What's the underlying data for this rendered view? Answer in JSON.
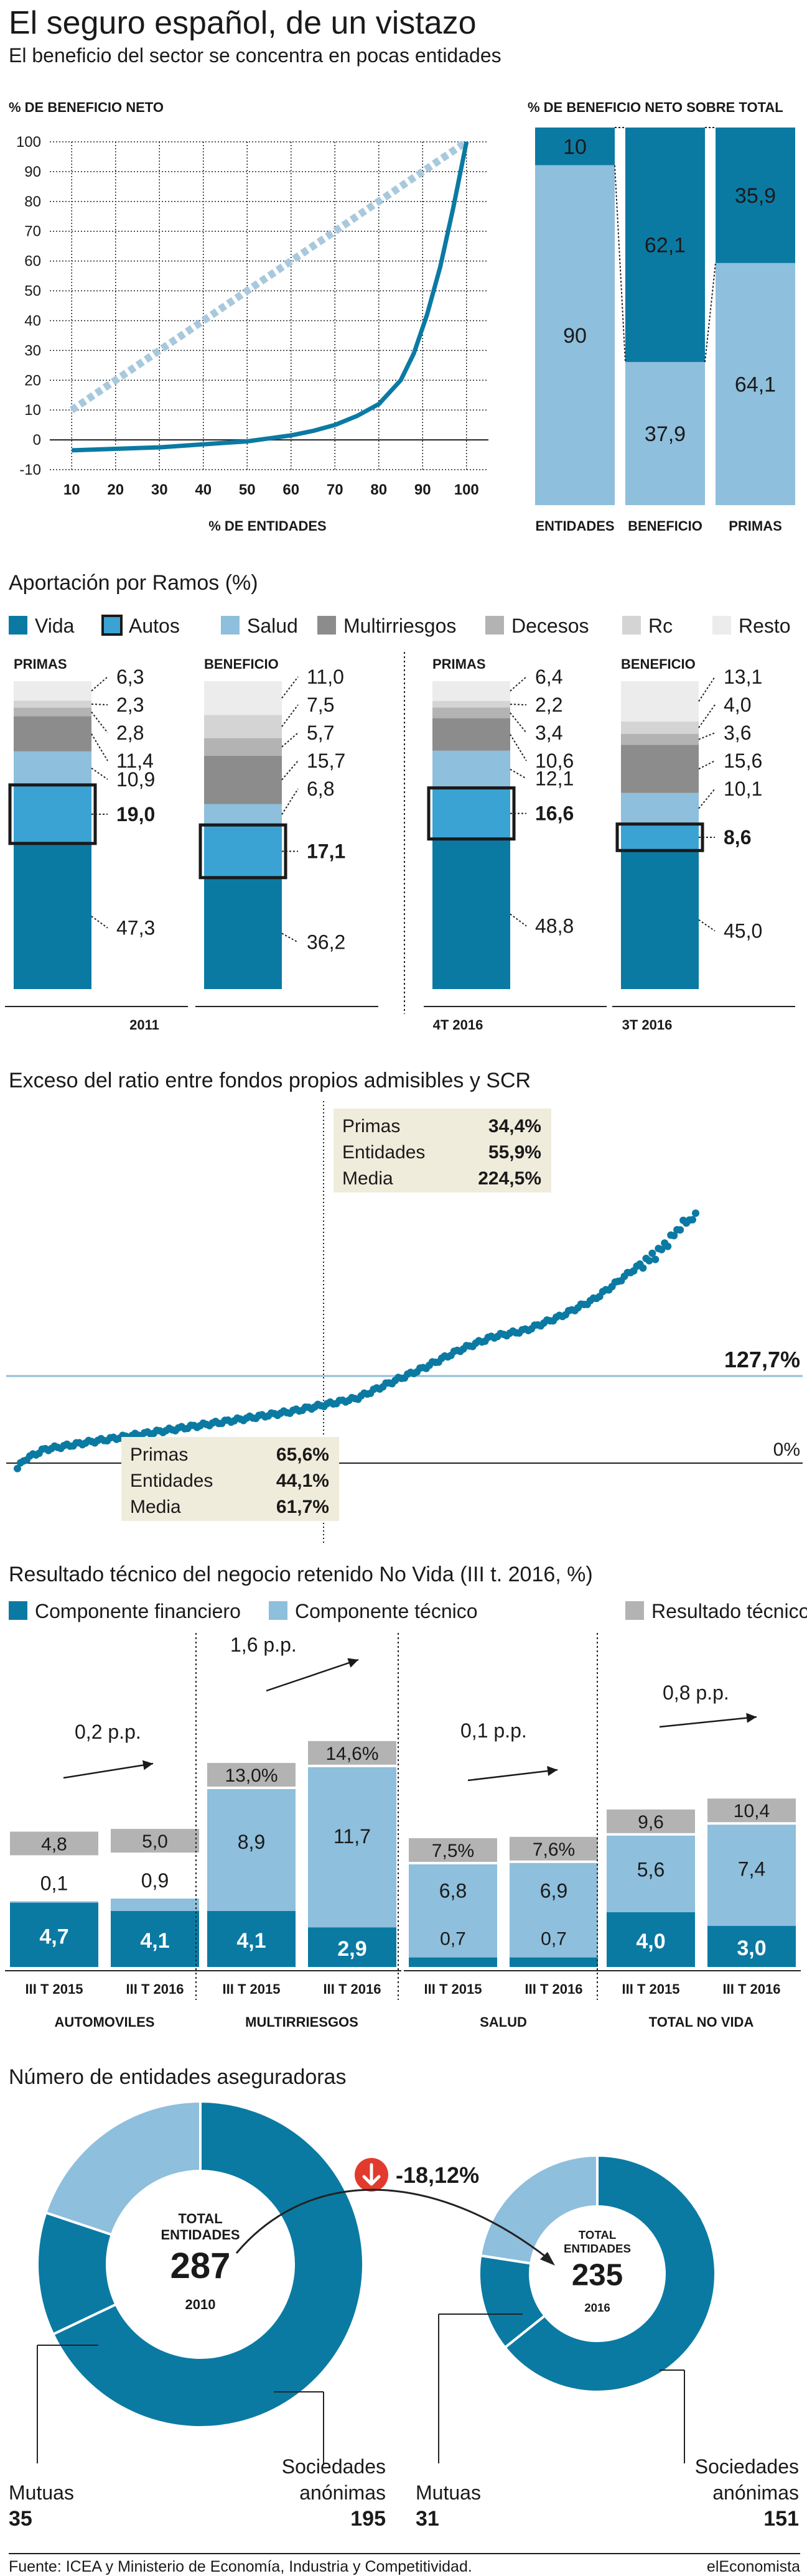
{
  "header": {
    "title": "El seguro español, de un vistazo",
    "subtitle": "El beneficio del sector se concentra en pocas entidades"
  },
  "colors": {
    "vida": "#0b7aa3",
    "autos": "#3aa3d4",
    "salud": "#8ebfdc",
    "multirriesgos": "#8c8c8c",
    "decesos": "#b3b3b3",
    "rc": "#d4d4d4",
    "resto": "#ececec",
    "line": "#0b7aa3",
    "dotted": "#a8c9dd",
    "box": "#f0ecdc",
    "red": "#e23b2e",
    "text": "#1a1a1a"
  },
  "chart_data": [
    {
      "id": "concentration",
      "type": "line",
      "ylabel": "% DE BENEFICIO NETO",
      "xlabel": "% DE ENTIDADES",
      "xlim": [
        5,
        105
      ],
      "ylim": [
        -10,
        100
      ],
      "xticks": [
        10,
        20,
        30,
        40,
        50,
        60,
        70,
        80,
        90,
        100
      ],
      "yticks": [
        -10,
        0,
        10,
        20,
        30,
        40,
        50,
        60,
        70,
        80,
        90,
        100
      ],
      "grid": true,
      "series": [
        {
          "style": "curve",
          "x": [
            10,
            20,
            30,
            40,
            50,
            55,
            60,
            65,
            70,
            75,
            80,
            85,
            88,
            91,
            94,
            97,
            100
          ],
          "y": [
            -3.5,
            -3,
            -2.5,
            -1.5,
            -0.5,
            0.5,
            1.5,
            3,
            5,
            8,
            12,
            20,
            29,
            42,
            58,
            78,
            100
          ]
        },
        {
          "style": "dotted",
          "x": [
            10,
            100
          ],
          "y": [
            10,
            100
          ]
        }
      ]
    },
    {
      "id": "concentration-bars",
      "type": "bar",
      "title": "% DE BENEFICIO NETO SOBRE TOTAL",
      "categories": [
        "ENTIDADES",
        "BENEFICIO",
        "PRIMAS"
      ],
      "series": [
        {
          "values": [
            90,
            37.9,
            64.1
          ],
          "labels": [
            "90",
            "37,9",
            "64,1"
          ]
        },
        {
          "values": [
            10,
            62.1,
            35.9
          ],
          "labels": [
            "10",
            "62,1",
            "35,9"
          ]
        }
      ]
    },
    {
      "id": "ramos",
      "type": "bar",
      "title": "Aportación por Ramos (%)",
      "legend": [
        "Vida",
        "Autos",
        "Salud",
        "Multirriesgos",
        "Decesos",
        "Rc",
        "Resto"
      ],
      "groups": [
        {
          "label": "2011",
          "bars": [
            {
              "label": "PRIMAS",
              "values": [
                47.3,
                19.0,
                10.9,
                11.4,
                2.8,
                2.3,
                6.3
              ],
              "labels": [
                "47,3",
                "19,0",
                "10,9",
                "11,4",
                "2,8",
                "2,3",
                "6,3"
              ]
            },
            {
              "label": "BENEFICIO",
              "values": [
                36.2,
                17.1,
                6.8,
                15.7,
                5.7,
                7.5,
                11.0
              ],
              "labels": [
                "36,2",
                "17,1",
                "6,8",
                "15,7",
                "5,7",
                "7,5",
                "11,0"
              ]
            }
          ]
        },
        {
          "label": "4T 2016",
          "bars": [
            {
              "label": "PRIMAS",
              "values": [
                48.8,
                16.6,
                12.1,
                10.6,
                3.4,
                2.2,
                6.4
              ],
              "labels": [
                "48,8",
                "16,6",
                "12,1",
                "10,6",
                "3,4",
                "2,2",
                "6,4"
              ]
            }
          ]
        },
        {
          "label": "3T 2016",
          "bars": [
            {
              "label": "BENEFICIO",
              "values": [
                45.0,
                8.6,
                10.1,
                15.6,
                3.6,
                4.0,
                13.1
              ],
              "labels": [
                "45,0",
                "8,6",
                "10,1",
                "15,6",
                "3,6",
                "4,0",
                "13,1"
              ]
            }
          ]
        }
      ]
    },
    {
      "id": "scr",
      "type": "scatter",
      "title": "Exceso del ratio entre fondos propios admisibles y SCR",
      "ylim": [
        -15,
        400
      ],
      "reference_lines": [
        {
          "value": 127.7,
          "label": "127,7%"
        },
        {
          "value": 0,
          "label": "0%"
        }
      ],
      "top_box": [
        {
          "label": "Primas",
          "value": "34,4%"
        },
        {
          "label": "Entidades",
          "value": "55,9%"
        },
        {
          "label": "Media",
          "value": "224,5%"
        }
      ],
      "bottom_box": [
        {
          "label": "Primas",
          "value": "65,6%"
        },
        {
          "label": "Entidades",
          "value": "44,1%"
        },
        {
          "label": "Media",
          "value": "61,7%"
        }
      ],
      "curve_points": [
        [
          0,
          -8
        ],
        [
          1,
          5
        ],
        [
          4,
          20
        ],
        [
          10,
          30
        ],
        [
          20,
          45
        ],
        [
          30,
          60
        ],
        [
          40,
          75
        ],
        [
          50,
          95
        ],
        [
          55,
          118
        ],
        [
          60,
          140
        ],
        [
          65,
          165
        ],
        [
          70,
          185
        ],
        [
          75,
          195
        ],
        [
          80,
          215
        ],
        [
          85,
          240
        ],
        [
          88,
          262
        ],
        [
          91,
          285
        ],
        [
          94,
          305
        ],
        [
          96,
          325
        ],
        [
          98,
          350
        ],
        [
          100,
          362
        ]
      ],
      "n_points": 220
    },
    {
      "id": "no-vida",
      "type": "bar",
      "title": "Resultado técnico del negocio retenido No Vida (III t. 2016, %)",
      "legend": [
        "Componente financiero",
        "Componente técnico",
        "Resultado técnico"
      ],
      "groups": [
        {
          "label": "AUTOMOVILES",
          "change": "0,2 p.p.",
          "bars": [
            {
              "period": "III T 2015",
              "financiero": 4.7,
              "tecnico": 0.1,
              "resultado": "4,8",
              "fin_label": "4,7",
              "tec_label": "0,1"
            },
            {
              "period": "III T 2016",
              "financiero": 4.1,
              "tecnico": 0.9,
              "resultado": "5,0",
              "fin_label": "4,1",
              "tec_label": "0,9"
            }
          ]
        },
        {
          "label": "MULTIRRIESGOS",
          "change": "1,6 p.p.",
          "bars": [
            {
              "period": "III T 2015",
              "financiero": 4.1,
              "tecnico": 8.9,
              "resultado": "13,0%",
              "fin_label": "4,1",
              "tec_label": "8,9"
            },
            {
              "period": "III T 2016",
              "financiero": 2.9,
              "tecnico": 11.7,
              "resultado": "14,6%",
              "fin_label": "2,9",
              "tec_label": "11,7"
            }
          ]
        },
        {
          "label": "SALUD",
          "change": "0,1 p.p.",
          "bars": [
            {
              "period": "III T 2015",
              "financiero": 0.7,
              "tecnico": 6.8,
              "resultado": "7,5%",
              "fin_label": "0,7",
              "tec_label": "6,8"
            },
            {
              "period": "III T 2016",
              "financiero": 0.7,
              "tecnico": 6.9,
              "resultado": "7,6%",
              "fin_label": "0,7",
              "tec_label": "6,9"
            }
          ]
        },
        {
          "label": "TOTAL NO VIDA",
          "change": "0,8 p.p.",
          "bars": [
            {
              "period": "III T 2015",
              "financiero": 4.0,
              "tecnico": 5.6,
              "resultado": "9,6",
              "fin_label": "4,0",
              "tec_label": "5,6"
            },
            {
              "period": "III T 2016",
              "financiero": 3.0,
              "tecnico": 7.4,
              "resultado": "10,4",
              "fin_label": "3,0",
              "tec_label": "7,4"
            }
          ]
        }
      ]
    },
    {
      "id": "entidades",
      "type": "pie",
      "title": "Número de entidades aseguradoras",
      "change": "-18,12%",
      "center_label": "TOTAL ENTIDADES",
      "donuts": [
        {
          "year": "2010",
          "total": "287",
          "slices": [
            {
              "label": "Mutuas",
              "value": 35
            },
            {
              "label": "Sociedades anónimas",
              "value": 195
            },
            {
              "value": 57
            }
          ]
        },
        {
          "year": "2016",
          "total": "235",
          "slices": [
            {
              "label": "Mutuas",
              "value": 31
            },
            {
              "label": "Sociedades anónimas",
              "value": 151
            },
            {
              "value": 53
            }
          ]
        }
      ]
    }
  ],
  "labels": {
    "mutuas": "Mutuas",
    "sociedades_1": "Sociedades",
    "sociedades_2": "anónimas",
    "total_1": "TOTAL",
    "total_2": "ENTIDADES"
  },
  "footer": {
    "source": "Fuente: ICEA y Ministerio de Economía, Industria y Competitividad.",
    "brand": "elEconomista"
  }
}
